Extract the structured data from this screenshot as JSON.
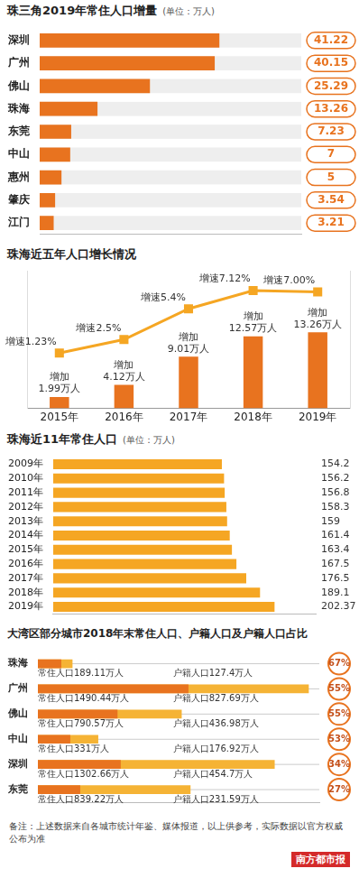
{
  "chart_data": [
    {
      "type": "bar",
      "title": "珠三角2019年常住人口增量",
      "subtitle": "(单位：万人)",
      "orientation": "horizontal",
      "categories": [
        "深圳",
        "广州",
        "佛山",
        "珠海",
        "东莞",
        "中山",
        "惠州",
        "肇庆",
        "江门"
      ],
      "values": [
        41.22,
        40.15,
        25.29,
        13.26,
        7.23,
        7,
        5,
        3.54,
        3.21
      ],
      "color": "#e8731f",
      "xlim": [
        0,
        60
      ],
      "data_labels": true,
      "tick_labels": "y",
      "grid": false
    },
    {
      "type": "bar",
      "title": "珠海近五年人口增长情况",
      "categories": [
        "2015年",
        "2016年",
        "2017年",
        "2018年",
        "2019年"
      ],
      "series": [
        {
          "name": "增加",
          "type": "bar",
          "color": "#e8731f",
          "values": [
            1.99,
            4.12,
            9.01,
            12.57,
            13.26
          ],
          "value_labels": [
            "增加1.99万人",
            "增加4.12万人",
            "增加9.01万人",
            "增加12.57万人",
            "增加13.26万人"
          ]
        },
        {
          "name": "增速",
          "type": "line",
          "axis": "y2",
          "color": "#f5a623",
          "marker": "square",
          "values": [
            1.23,
            2.5,
            5.4,
            7.12,
            7.0
          ],
          "value_labels": [
            "增速1.23%",
            "增速2.5%",
            "增速5.4%",
            "增速7.12%",
            "增速7.00%"
          ]
        }
      ],
      "ylim": [
        0,
        24
      ],
      "y2lim": [
        -4,
        9
      ],
      "data_labels": true,
      "tick_labels": "x",
      "grid": false
    },
    {
      "type": "bar",
      "title": "珠海近11年常住人口",
      "subtitle": "(单位：万人)",
      "orientation": "horizontal",
      "categories": [
        "2009年",
        "2010年",
        "2011年",
        "2012年",
        "2013年",
        "2014年",
        "2015年",
        "2016年",
        "2017年",
        "2018年",
        "2019年"
      ],
      "values": [
        154.2,
        156.2,
        156.8,
        158.3,
        159,
        161.4,
        163.4,
        167.5,
        176.5,
        189.1,
        202.37
      ],
      "color": "#f5a623",
      "xlim": [
        0,
        240
      ],
      "data_labels": true,
      "tick_labels": "y",
      "grid": false
    },
    {
      "type": "bar",
      "title": "大湾区部分城市2018年末常住人口、户籍人口及户籍人口占比",
      "orientation": "horizontal",
      "categories": [
        "珠海",
        "广州",
        "佛山",
        "中山",
        "深圳",
        "东莞"
      ],
      "series": [
        {
          "name": "常住人口",
          "color": "#f5b335",
          "values": [
            189.11,
            1490.44,
            790.57,
            331,
            1302.66,
            839.22
          ],
          "value_labels": [
            "常住人口189.11万人",
            "常住人口1490.44万人",
            "常住人口790.57万人",
            "常住人口331万人",
            "常住人口1302.66万人",
            "常住人口839.22万人"
          ]
        },
        {
          "name": "户籍人口",
          "color": "#e8731f",
          "values": [
            127.4,
            827.69,
            436.98,
            176.92,
            454.7,
            231.59
          ],
          "value_labels": [
            "户籍人口127.4万人",
            "户籍人口827.69万人",
            "户籍人口436.98万人",
            "户籍人口176.92万人",
            "户籍人口454.7万人",
            "户籍人口231.59万人"
          ]
        }
      ],
      "shares": [
        67,
        55,
        55,
        53,
        34,
        27
      ],
      "share_labels": [
        "67%",
        "55%",
        "55%",
        "53%",
        "34%",
        "27%"
      ],
      "xlim": [
        0,
        1550
      ],
      "data_labels": true,
      "tick_labels": "y",
      "grid": false
    }
  ],
  "note": "备注：上述数据来自各城市统计年鉴、媒体报道，以上供参考，实际数据以官方权威公布为准",
  "source": "南方都市报"
}
